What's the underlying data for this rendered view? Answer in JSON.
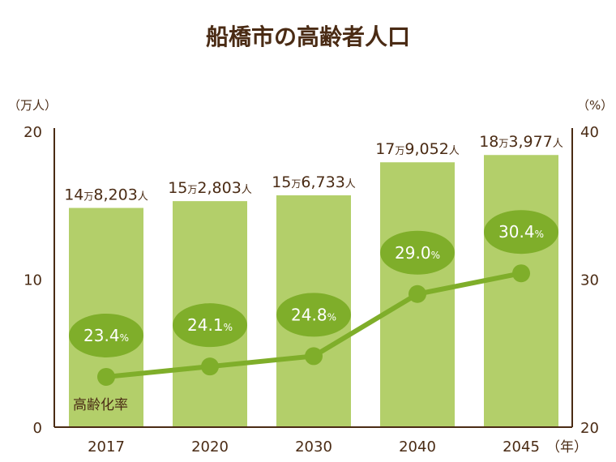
{
  "chart_data": {
    "type": "bar+line",
    "title": "船橋市の高齢者人口",
    "categories": [
      "2017",
      "2020",
      "2030",
      "2040",
      "2045"
    ],
    "x_unit": "（年）",
    "series": [
      {
        "name": "高齢者人口",
        "unit": "万人",
        "axis": "left",
        "values": [
          14.8203,
          15.2803,
          15.6733,
          17.9052,
          18.3977
        ],
        "labels": [
          {
            "man": "14",
            "rest": "8,203"
          },
          {
            "man": "15",
            "rest": "2,803"
          },
          {
            "man": "15",
            "rest": "6,733"
          },
          {
            "man": "17",
            "rest": "9,052"
          },
          {
            "man": "18",
            "rest": "3,977"
          }
        ],
        "color": "#b3cf6a"
      },
      {
        "name": "高齢化率",
        "unit": "%",
        "axis": "right",
        "values": [
          23.4,
          24.1,
          24.8,
          29.0,
          30.4
        ],
        "labels": [
          "23.4",
          "24.1",
          "24.8",
          "29.0",
          "30.4"
        ],
        "color": "#7fae2a"
      }
    ],
    "left_axis": {
      "label": "（万人）",
      "ylim": [
        0,
        20
      ],
      "ticks": [
        "0",
        "10",
        "20"
      ]
    },
    "right_axis": {
      "label": "（%）",
      "ylim": [
        20,
        40
      ],
      "ticks": [
        "20",
        "30",
        "40"
      ]
    },
    "man_char": "万",
    "nin_char": "人",
    "pct_char": "%",
    "grid": false
  },
  "colors": {
    "text": "#4a2b14",
    "bar": "#b3cf6a",
    "line": "#7fae2a"
  }
}
